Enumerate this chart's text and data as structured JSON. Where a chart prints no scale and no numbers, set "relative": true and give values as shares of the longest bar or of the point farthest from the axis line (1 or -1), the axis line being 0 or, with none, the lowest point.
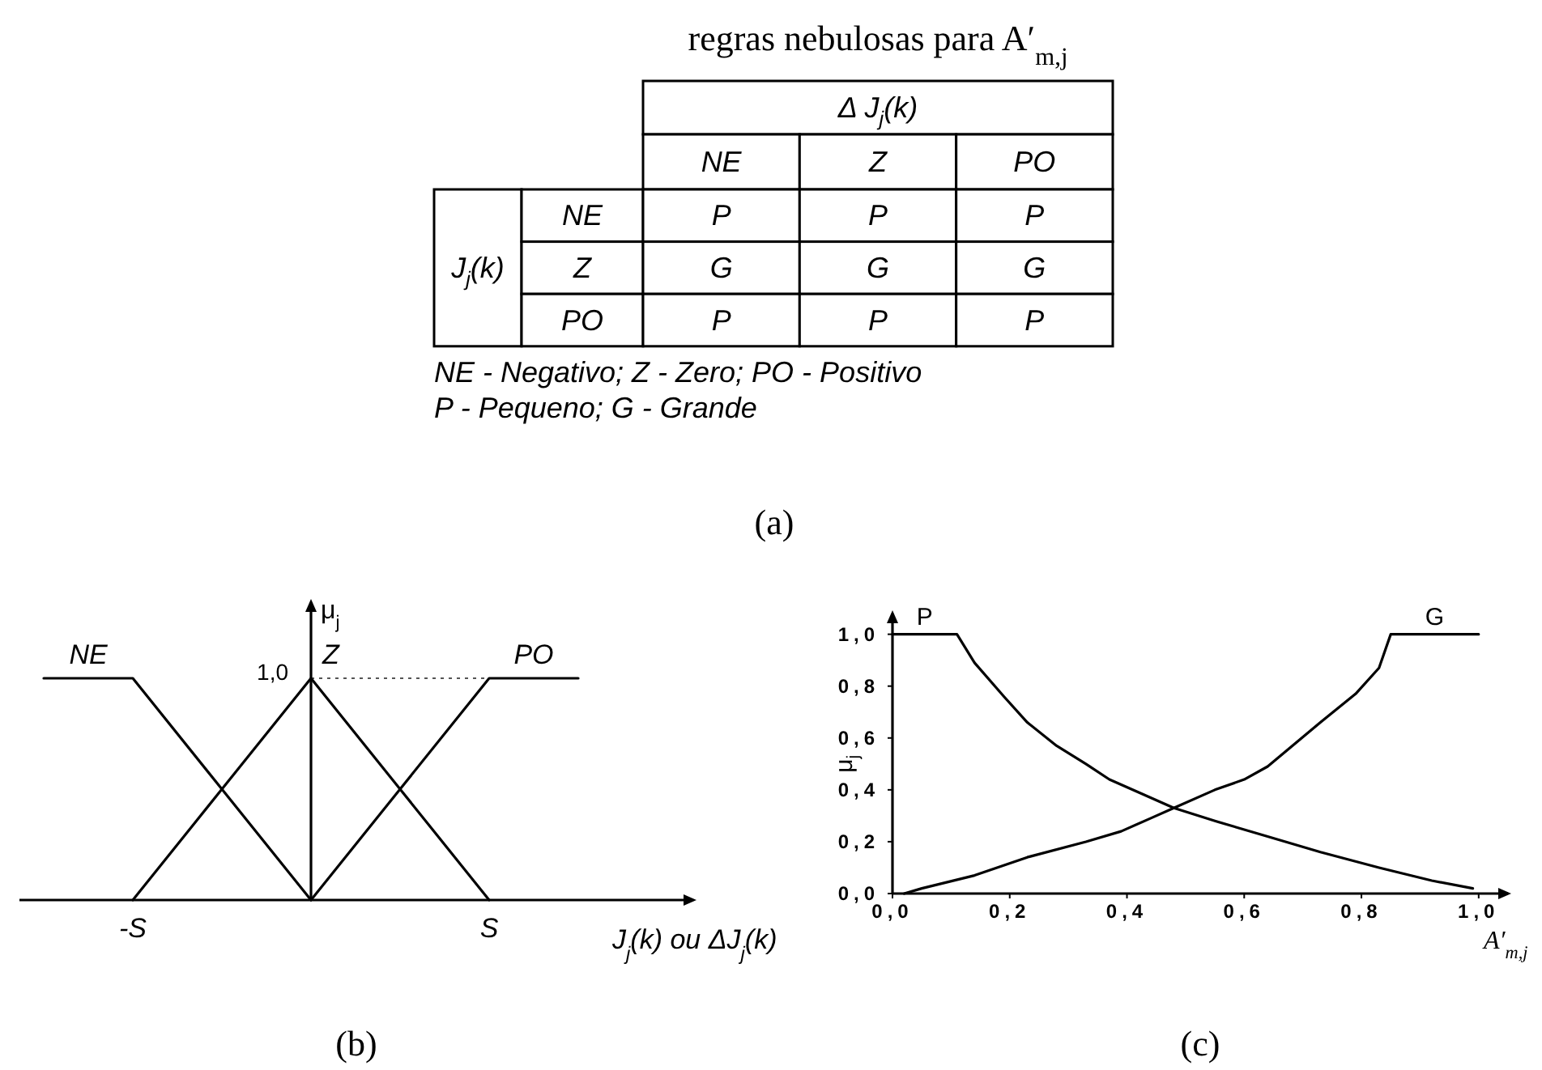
{
  "chart_data": [
    {
      "type": "heatmap",
      "title": "regras nebulosas para A′$_{m,j}$",
      "xlabel": "Δ J$_{j}$(k)",
      "ylabel": "J$_{j}$(k)",
      "categories": [
        "NE",
        "Z",
        "PO"
      ],
      "y_categories": [
        "NE",
        "Z",
        "PO"
      ],
      "cells": [
        [
          null,
          null,
          null
        ],
        [
          null,
          null,
          null
        ],
        [
          null,
          null,
          null
        ]
      ],
      "cell_labels": [
        [
          "P",
          "P",
          "P"
        ],
        [
          "G",
          "G",
          "G"
        ],
        [
          "P",
          "P",
          "P"
        ]
      ],
      "annotations": [
        "NE - Negativo; Z - Zero; PO - Positivo",
        "P - Pequeno;  G - Grande",
        "(a)"
      ]
    },
    {
      "type": "line",
      "relative": true,
      "xlabel": "J$_{j}$(k) ou ΔJ$_{j}$(k)",
      "ylabel": "μ$_{j}$",
      "categories": [
        null,
        "-S",
        null,
        null,
        null,
        "S",
        null
      ],
      "series": [
        {
          "name": "NE",
          "color": "#000000",
          "values": [
            1,
            1,
            0.5,
            0,
            null,
            null,
            null
          ]
        },
        {
          "name": "Z",
          "color": "#000000",
          "values": [
            null,
            0,
            0.5,
            1,
            0.5,
            0,
            null
          ]
        },
        {
          "name": "PO",
          "color": "#000000",
          "values": [
            null,
            null,
            null,
            0,
            0.5,
            1,
            1
          ]
        }
      ],
      "ref_lines": [
        {
          "axis": "y",
          "value": 1,
          "label": "1,0",
          "line_style": "dotted"
        }
      ],
      "annotations": [
        "(b)"
      ]
    },
    {
      "type": "line",
      "xlabel": "A′$_{m,j}$",
      "ylabel": "μ$_{j}$",
      "xlim": [
        0,
        1.05
      ],
      "ylim": [
        0,
        1.08
      ],
      "xticks": [
        {
          "value": 0,
          "label": "0,0"
        },
        {
          "value": 0.2,
          "label": "0,2"
        },
        {
          "value": 0.4,
          "label": "0,4"
        },
        {
          "value": 0.6,
          "label": "0,6"
        },
        {
          "value": 0.8,
          "label": "0,8"
        },
        {
          "value": 1,
          "label": "1,0"
        }
      ],
      "yticks": [
        {
          "value": 0,
          "label": "0,0"
        },
        {
          "value": 0.2,
          "label": "0,2"
        },
        {
          "value": 0.4,
          "label": "0,4"
        },
        {
          "value": 0.6,
          "label": "0,6"
        },
        {
          "value": 0.8,
          "label": "0,8"
        },
        {
          "value": 1,
          "label": "1,0"
        }
      ],
      "series": [
        {
          "name": "P",
          "color": "#000000",
          "x": [
            0,
            0.11,
            0.14,
            0.19,
            0.23,
            0.28,
            0.33,
            0.37,
            0.42,
            0.48,
            0.55,
            0.64,
            0.73,
            0.83,
            0.92,
            0.99
          ],
          "values": [
            1,
            1,
            0.89,
            0.76,
            0.66,
            0.57,
            0.5,
            0.44,
            0.39,
            0.33,
            0.28,
            0.22,
            0.16,
            0.1,
            0.05,
            0.02
          ]
        },
        {
          "name": "G",
          "color": "#000000",
          "x": [
            0.02,
            0.05,
            0.14,
            0.23,
            0.33,
            0.39,
            0.44,
            0.48,
            0.55,
            0.6,
            0.64,
            0.73,
            0.79,
            0.83,
            0.85,
            1
          ],
          "values": [
            0,
            0.02,
            0.07,
            0.14,
            0.2,
            0.24,
            0.29,
            0.33,
            0.4,
            0.44,
            0.49,
            0.66,
            0.77,
            0.87,
            1,
            1
          ]
        }
      ],
      "annotations": [
        "(c)"
      ]
    }
  ]
}
